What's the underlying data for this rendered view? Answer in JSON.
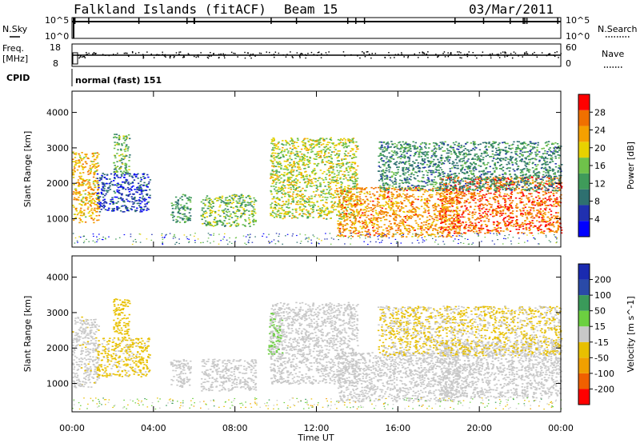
{
  "header": {
    "station": "Falkland Islands (fitACF)",
    "beam": "Beam 15",
    "date": "03/Mar/2011"
  },
  "strip_panels": {
    "nsky_label": "N.Sky",
    "nsky_ticks": [
      "10^5",
      "10^0"
    ],
    "nsearch_label": "N.Search",
    "nsearch_ticks": [
      "10^5",
      "10^0"
    ],
    "freq_label": "Freq.",
    "freq_unit": "[MHz]",
    "freq_ticks": [
      "18",
      "8"
    ],
    "nave_label": "Nave",
    "nave_ticks": [
      "60",
      "0"
    ],
    "cpid_label": "CPID",
    "cpid_value": "normal (fast) 151"
  },
  "chart_data": [
    {
      "type": "heatmap",
      "variable": "power",
      "ylabel": "Slant Range [km]",
      "xlabel": "Time UT",
      "x_ticks": [
        "00:00",
        "04:00",
        "08:00",
        "12:00",
        "16:00",
        "20:00",
        "00:00"
      ],
      "y_ticks": [
        "1000",
        "2000",
        "3000",
        "4000"
      ],
      "ylim": [
        200,
        4600
      ],
      "xlim_hours": [
        0,
        24
      ],
      "colorbar": {
        "label": "Power [dB]",
        "ticks": [
          "4",
          "8",
          "12",
          "16",
          "20",
          "24",
          "28"
        ],
        "range": [
          0,
          32
        ],
        "colors": [
          "#0000ff",
          "#2030b0",
          "#2e7070",
          "#3f9b5a",
          "#6fc24a",
          "#e8d200",
          "#f5a000",
          "#f07000",
          "#ff0000"
        ]
      },
      "echo_regions": [
        {
          "t0": 0.0,
          "t1": 1.3,
          "r0": 900,
          "r1": 2900,
          "p": 22
        },
        {
          "t0": 1.2,
          "t1": 3.8,
          "r0": 1200,
          "r1": 2300,
          "p": 6
        },
        {
          "t0": 2.0,
          "t1": 2.8,
          "r0": 2300,
          "r1": 3400,
          "p": 14
        },
        {
          "t0": 4.8,
          "t1": 5.8,
          "r0": 900,
          "r1": 1700,
          "p": 12
        },
        {
          "t0": 6.3,
          "t1": 9.0,
          "r0": 800,
          "r1": 1700,
          "p": 15
        },
        {
          "t0": 9.7,
          "t1": 14.0,
          "r0": 1000,
          "r1": 3300,
          "p": 18
        },
        {
          "t0": 13.0,
          "t1": 19.0,
          "r0": 500,
          "r1": 1900,
          "p": 24
        },
        {
          "t0": 18.0,
          "t1": 24.0,
          "r0": 600,
          "r1": 2200,
          "p": 27
        },
        {
          "t0": 15.0,
          "t1": 24.0,
          "r0": 1800,
          "r1": 3200,
          "p": 11
        }
      ]
    },
    {
      "type": "heatmap",
      "variable": "velocity",
      "ylabel": "Slant Range [km]",
      "xlabel": "Time UT",
      "x_ticks": [
        "00:00",
        "04:00",
        "08:00",
        "12:00",
        "16:00",
        "20:00",
        "00:00"
      ],
      "y_ticks": [
        "1000",
        "2000",
        "3000",
        "4000"
      ],
      "ylim": [
        200,
        4600
      ],
      "xlim_hours": [
        0,
        24
      ],
      "colorbar": {
        "label": "Velocity [m s^-1]",
        "ticks": [
          "200",
          "100",
          "50",
          "15",
          "-15",
          "-50",
          "-100",
          "-200"
        ],
        "range": [
          -250,
          250
        ],
        "colors": [
          "#ff0000",
          "#f06000",
          "#f0a000",
          "#e8c000",
          "#c8c8c8",
          "#6cd040",
          "#3a9a5a",
          "#2a4aa8",
          "#1a2ab0"
        ]
      },
      "echo_regions": [
        {
          "t0": 0.0,
          "t1": 1.3,
          "r0": 900,
          "r1": 2900,
          "v": -10
        },
        {
          "t0": 1.2,
          "t1": 3.8,
          "r0": 1200,
          "r1": 2300,
          "v": -40
        },
        {
          "t0": 2.0,
          "t1": 2.8,
          "r0": 2300,
          "r1": 3400,
          "v": -60
        },
        {
          "t0": 4.8,
          "t1": 5.8,
          "r0": 900,
          "r1": 1700,
          "v": 0
        },
        {
          "t0": 6.3,
          "t1": 9.0,
          "r0": 800,
          "r1": 1700,
          "v": 0
        },
        {
          "t0": 9.7,
          "t1": 14.0,
          "r0": 1000,
          "r1": 3300,
          "v": 5
        },
        {
          "t0": 13.0,
          "t1": 19.0,
          "r0": 500,
          "r1": 1900,
          "v": 0
        },
        {
          "t0": 18.0,
          "t1": 24.0,
          "r0": 600,
          "r1": 2200,
          "v": -5
        },
        {
          "t0": 15.0,
          "t1": 24.0,
          "r0": 1800,
          "r1": 3200,
          "v": -30
        },
        {
          "t0": 9.6,
          "t1": 10.3,
          "r0": 1800,
          "r1": 3000,
          "v": 30
        }
      ]
    }
  ]
}
